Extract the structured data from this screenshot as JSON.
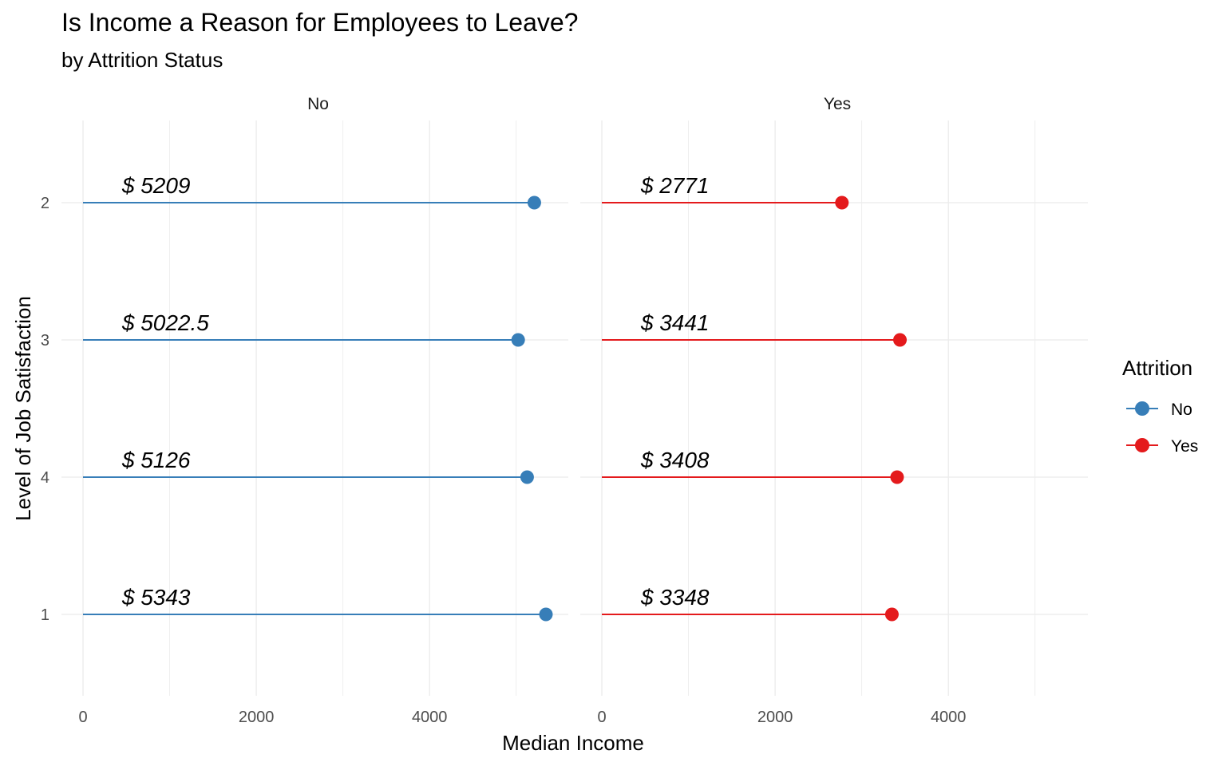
{
  "chart_data": {
    "type": "lollipop",
    "title": "Is Income a Reason for Employees to Leave?",
    "subtitle": "by Attrition Status",
    "xlabel": "Median Income",
    "ylabel": "Level of Job Satisfaction",
    "categories": [
      "2",
      "3",
      "4",
      "1"
    ],
    "x_ticks": [
      0,
      2000,
      4000
    ],
    "xlim": [
      0,
      5700
    ],
    "grid": true,
    "legend": {
      "title": "Attrition",
      "position": "right"
    },
    "facets": [
      {
        "name": "No",
        "color": "#377EB8",
        "values": [
          5209,
          5022.5,
          5126,
          5343
        ],
        "labels": [
          "$ 5209",
          "$ 5022.5",
          "$ 5126",
          "$ 5343"
        ]
      },
      {
        "name": "Yes",
        "color": "#E41A1C",
        "values": [
          2771,
          3441,
          3408,
          3348
        ],
        "labels": [
          "$ 2771",
          "$ 3441",
          "$ 3408",
          "$ 3348"
        ]
      }
    ]
  }
}
